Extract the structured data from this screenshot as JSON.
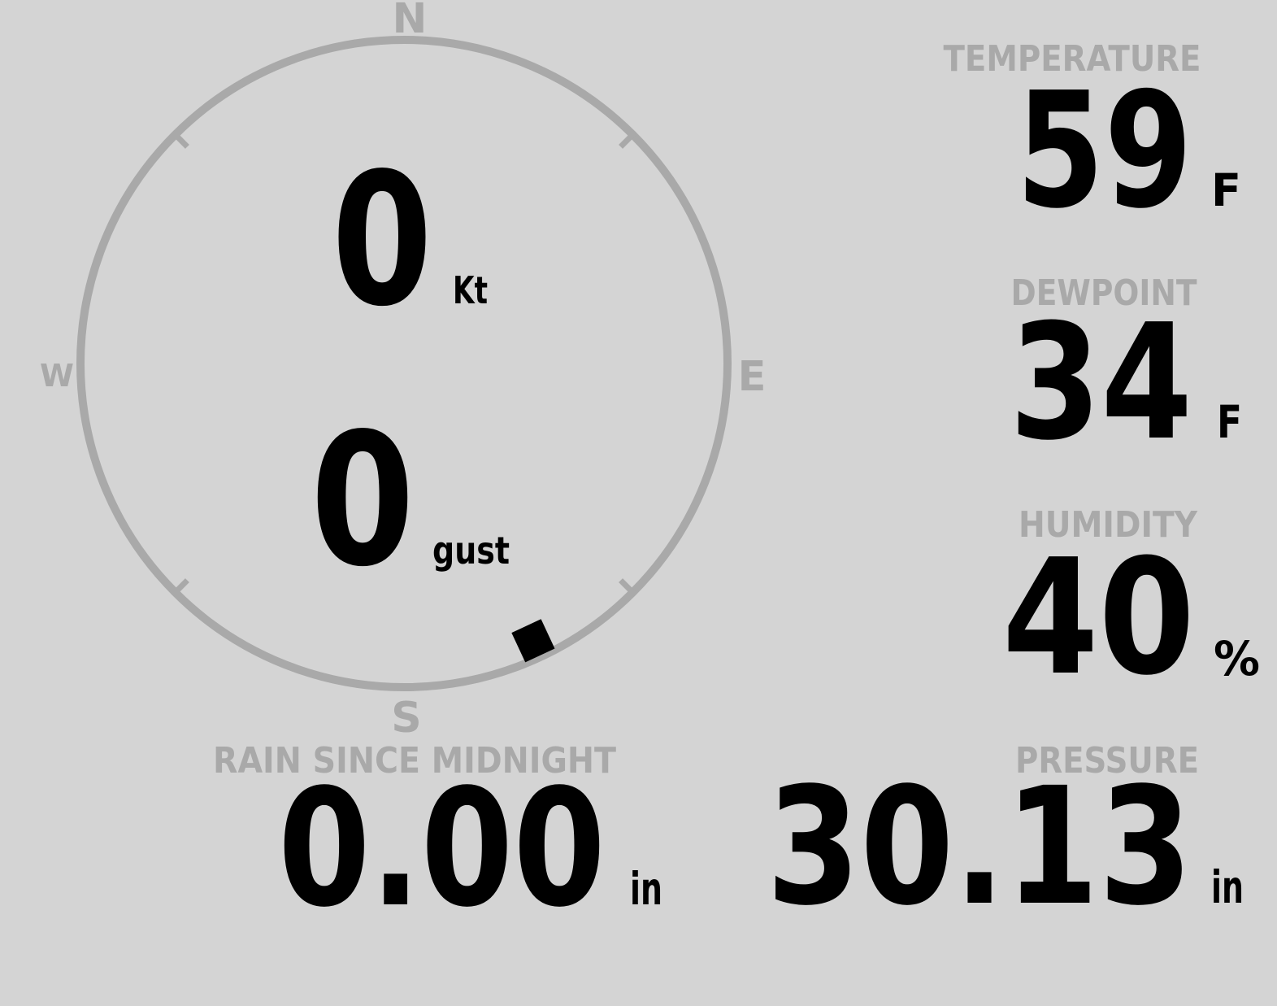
{
  "theme": {
    "background": "#d4d4d4",
    "muted_gray": "#a9a9a9",
    "text_black": "#000000"
  },
  "compass": {
    "cardinals": {
      "north": "N",
      "east": "E",
      "south": "S",
      "west": "W"
    },
    "wind_speed": {
      "value": "0",
      "unit": "Kt"
    },
    "wind_gust": {
      "value": "0",
      "unit": "gust"
    },
    "marker_azimuth_deg": 155
  },
  "panels": {
    "temperature": {
      "label": "TEMPERATURE",
      "value": "59",
      "unit": "F"
    },
    "dewpoint": {
      "label": "DEWPOINT",
      "value": "34",
      "unit": "F"
    },
    "humidity": {
      "label": "HUMIDITY",
      "value": "40",
      "unit": "%"
    },
    "rain": {
      "label": "RAIN SINCE MIDNIGHT",
      "value": "0.00",
      "unit": "in"
    },
    "pressure": {
      "label": "PRESSURE",
      "value": "30.13",
      "unit": "in"
    }
  }
}
